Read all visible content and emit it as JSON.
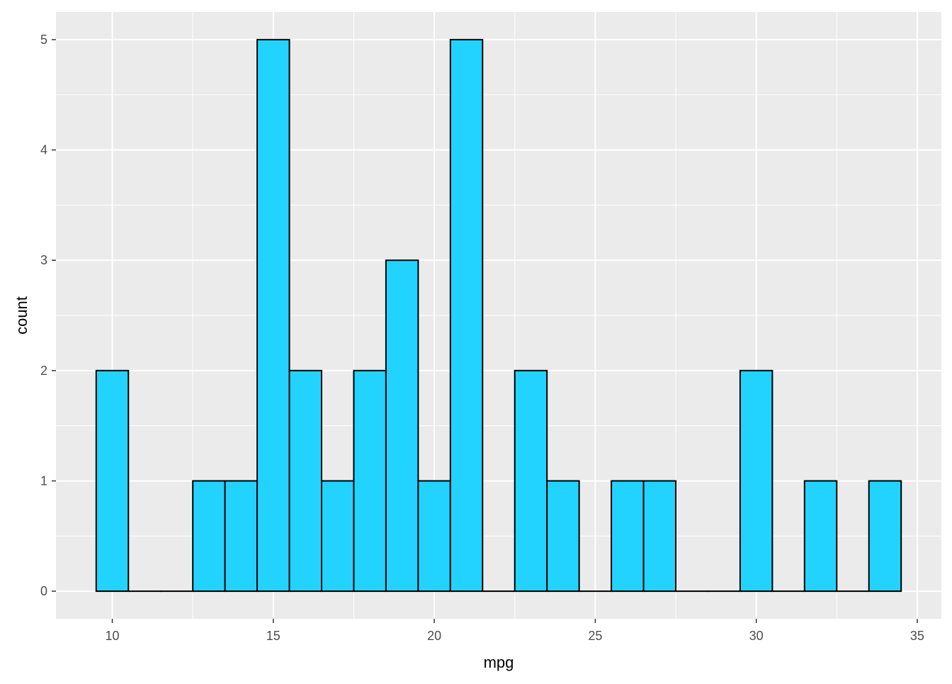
{
  "chart_data": {
    "type": "bar",
    "subtype": "histogram",
    "title": "",
    "xlabel": "mpg",
    "ylabel": "count",
    "binwidth": 1,
    "bins": [
      {
        "x": 10,
        "count": 2
      },
      {
        "x": 11,
        "count": 0
      },
      {
        "x": 12,
        "count": 0
      },
      {
        "x": 13,
        "count": 1
      },
      {
        "x": 14,
        "count": 1
      },
      {
        "x": 15,
        "count": 5
      },
      {
        "x": 16,
        "count": 2
      },
      {
        "x": 17,
        "count": 1
      },
      {
        "x": 18,
        "count": 2
      },
      {
        "x": 19,
        "count": 3
      },
      {
        "x": 20,
        "count": 1
      },
      {
        "x": 21,
        "count": 5
      },
      {
        "x": 22,
        "count": 0
      },
      {
        "x": 23,
        "count": 2
      },
      {
        "x": 24,
        "count": 1
      },
      {
        "x": 25,
        "count": 0
      },
      {
        "x": 26,
        "count": 1
      },
      {
        "x": 27,
        "count": 1
      },
      {
        "x": 28,
        "count": 0
      },
      {
        "x": 29,
        "count": 0
      },
      {
        "x": 30,
        "count": 2
      },
      {
        "x": 31,
        "count": 0
      },
      {
        "x": 32,
        "count": 1
      },
      {
        "x": 33,
        "count": 0
      },
      {
        "x": 34,
        "count": 1
      }
    ],
    "xlim": [
      8.25,
      35.75
    ],
    "ylim": [
      -0.25,
      5.25
    ],
    "x_ticks": [
      10,
      15,
      20,
      25,
      30,
      35
    ],
    "y_ticks": [
      0,
      1,
      2,
      3,
      4,
      5
    ],
    "x_tick_labels": [
      "10",
      "15",
      "20",
      "25",
      "30",
      "35"
    ],
    "y_tick_labels": [
      "0",
      "1",
      "2",
      "3",
      "4",
      "5"
    ],
    "grid": true,
    "legend": "none",
    "colors": {
      "bar_fill": "#22d3ff",
      "bar_outline": "#000000",
      "panel_background": "#ebebeb",
      "gridline": "#ffffff",
      "tick_text": "#4d4d4d",
      "axis_title_text": "#000000"
    }
  }
}
